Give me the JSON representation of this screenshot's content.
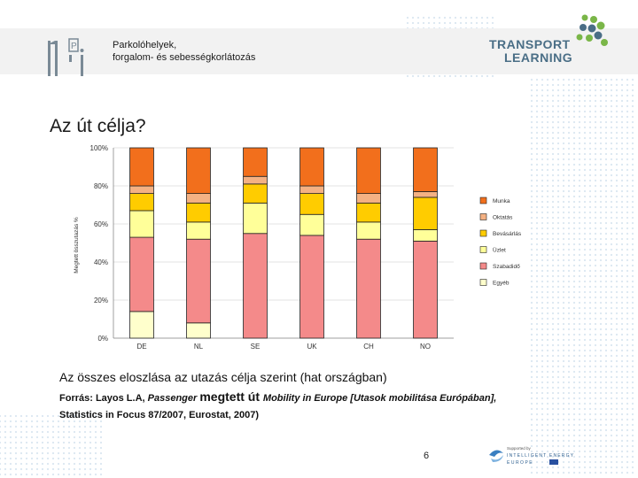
{
  "header": {
    "logo_text": "1p",
    "title_line1": "Parkolóhelyek,",
    "title_line2": "forgalom- és sebességkorlátozás",
    "brand_line1": "TRANSPORT",
    "brand_line2": "LEARNING"
  },
  "slide_title": "Az út célja?",
  "chart_data": {
    "type": "bar",
    "stacked": true,
    "title": "",
    "xlabel": "",
    "ylabel": "Megtett összutazás %",
    "ylim": [
      0,
      100
    ],
    "y_ticks": [
      "0%",
      "20%",
      "40%",
      "60%",
      "80%",
      "100%"
    ],
    "categories": [
      "DE",
      "NL",
      "SE",
      "UK",
      "CH",
      "NO"
    ],
    "series": [
      {
        "name": "Egyéb",
        "color": "#ffffcc",
        "values": [
          14,
          8,
          0,
          0,
          0,
          0
        ]
      },
      {
        "name": "Szabadidő",
        "color": "#f48a8a",
        "values": [
          39,
          44,
          55,
          54,
          52,
          51
        ]
      },
      {
        "name": "Üzlet",
        "color": "#ffff99",
        "values": [
          14,
          9,
          16,
          11,
          9,
          6
        ]
      },
      {
        "name": "Bevásárlás",
        "color": "#ffcc00",
        "values": [
          9,
          10,
          10,
          11,
          10,
          17
        ]
      },
      {
        "name": "Oktatás",
        "color": "#f4b183",
        "values": [
          4,
          5,
          4,
          4,
          5,
          3
        ]
      },
      {
        "name": "Munka",
        "color": "#f26f1c",
        "values": [
          20,
          24,
          15,
          20,
          24,
          23
        ]
      }
    ],
    "legend_position": "right"
  },
  "caption": "Az összes eloszlása az utazás célja szerint (hat országban)",
  "source": {
    "part1": "Forrás: Layos L.A, ",
    "part2": "Passenger ",
    "part3": "megtett út ",
    "part4": "Mobility in Europe [Utasok mobilitása Európában],",
    "line2": "Statistics in Focus 87/2007, Eurostat, 2007)"
  },
  "page_number": "6",
  "footer_logo": {
    "line1": "Supported by",
    "line2": "INTELLIGENT ENERGY",
    "line3": "EUROPE"
  },
  "colors": {
    "brand_blue": "#4a6e86",
    "brand_green": "#7ab648"
  }
}
